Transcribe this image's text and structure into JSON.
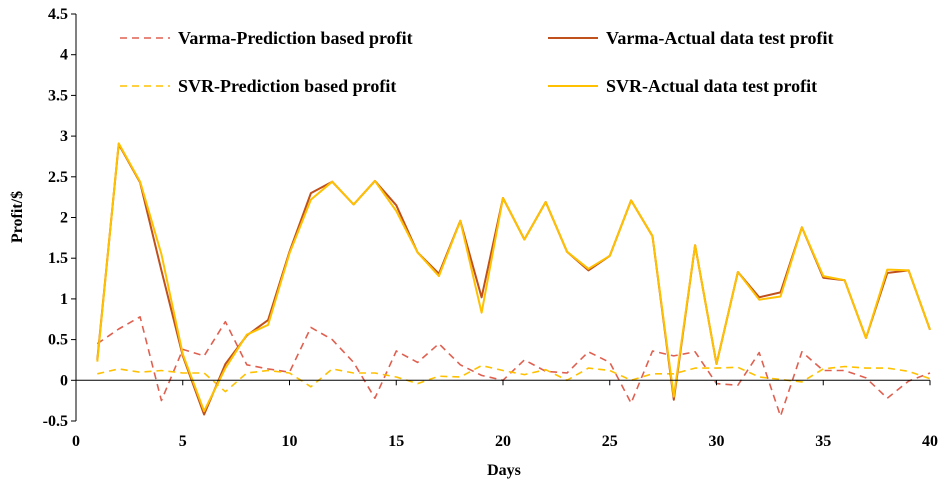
{
  "chart_data": {
    "type": "line",
    "title": "",
    "xlabel": "Days",
    "ylabel": "Profit/$",
    "xlim": [
      0,
      40
    ],
    "ylim": [
      -0.5,
      4.5
    ],
    "xticks": [
      "0",
      "5",
      "10",
      "15",
      "20",
      "25",
      "30",
      "35",
      "40"
    ],
    "yticks": [
      "-0.5",
      "0",
      "0.5",
      "1",
      "1.5",
      "2",
      "2.5",
      "3",
      "3.5",
      "4",
      "4.5"
    ],
    "grid": false,
    "x": [
      1,
      2,
      3,
      4,
      5,
      6,
      7,
      8,
      9,
      10,
      11,
      12,
      13,
      14,
      15,
      16,
      17,
      18,
      19,
      20,
      21,
      22,
      23,
      24,
      25,
      26,
      27,
      28,
      29,
      30,
      31,
      32,
      33,
      34,
      35,
      36,
      37,
      38,
      39,
      40
    ],
    "series": [
      {
        "name": "Varma-Prediction based  profit",
        "color": "#E06050",
        "style": "dashed",
        "values": [
          0.45,
          0.63,
          0.78,
          -0.25,
          0.38,
          0.3,
          0.72,
          0.19,
          0.14,
          0.1,
          0.65,
          0.5,
          0.22,
          -0.22,
          0.36,
          0.22,
          0.45,
          0.19,
          0.06,
          0.0,
          0.25,
          0.11,
          0.09,
          0.35,
          0.22,
          -0.28,
          0.36,
          0.3,
          0.35,
          -0.04,
          -0.06,
          0.34,
          -0.44,
          0.35,
          0.12,
          0.12,
          0.03,
          -0.22,
          -0.01,
          0.09
        ]
      },
      {
        "name": "Varma-Actual data test profit",
        "color": "#C0501C",
        "style": "solid",
        "values": [
          0.25,
          2.9,
          2.43,
          1.35,
          0.3,
          -0.42,
          0.2,
          0.55,
          0.74,
          1.58,
          2.3,
          2.44,
          2.16,
          2.45,
          2.15,
          1.57,
          1.31,
          1.96,
          1.02,
          2.24,
          1.73,
          2.19,
          1.58,
          1.35,
          1.53,
          2.21,
          1.77,
          -0.24,
          1.66,
          0.2,
          1.33,
          1.02,
          1.08,
          1.88,
          1.26,
          1.23,
          0.52,
          1.32,
          1.35,
          0.62
        ]
      },
      {
        "name": "SVR-Prediction based  profit",
        "color": "#FFC000",
        "style": "dashed",
        "values": [
          0.08,
          0.14,
          0.1,
          0.12,
          0.09,
          0.09,
          -0.14,
          0.09,
          0.12,
          0.09,
          -0.08,
          0.14,
          0.09,
          0.09,
          0.04,
          -0.04,
          0.05,
          0.04,
          0.18,
          0.12,
          0.07,
          0.13,
          0.0,
          0.15,
          0.12,
          0.0,
          0.08,
          0.08,
          0.15,
          0.15,
          0.16,
          0.04,
          0.01,
          -0.02,
          0.14,
          0.17,
          0.15,
          0.15,
          0.11,
          0.02
        ]
      },
      {
        "name": "SVR-Actual data test profit",
        "color": "#FFC000",
        "style": "solid",
        "values": [
          0.23,
          2.91,
          2.44,
          1.55,
          0.32,
          -0.38,
          0.15,
          0.56,
          0.68,
          1.56,
          2.22,
          2.44,
          2.16,
          2.45,
          2.08,
          1.57,
          1.28,
          1.96,
          0.83,
          2.24,
          1.73,
          2.19,
          1.58,
          1.37,
          1.53,
          2.21,
          1.77,
          -0.2,
          1.66,
          0.2,
          1.33,
          0.99,
          1.03,
          1.88,
          1.28,
          1.23,
          0.52,
          1.36,
          1.35,
          0.62
        ]
      }
    ],
    "legend": {
      "placement": "top",
      "columns": 2,
      "entries": [
        "Varma-Prediction based  profit",
        "Varma-Actual data test profit",
        "SVR-Prediction based  profit",
        "SVR-Actual data test profit"
      ]
    }
  }
}
